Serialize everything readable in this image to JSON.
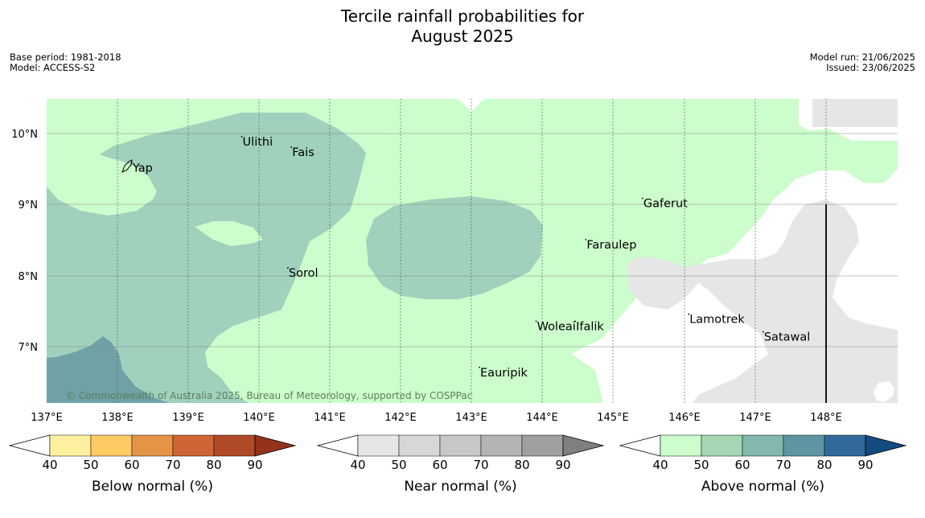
{
  "title_line1": "Tercile rainfall probabilities for",
  "title_line2": "August 2025",
  "base_period": "Base period: 1981-2018",
  "model": "Model: ACCESS-S2",
  "model_run": "Model run: 21/06/2025",
  "issued": "Issued: 23/06/2025",
  "copyright": "© Commonwealth of Australia 2025, Bureau of Meteorology, supported by COSPPac",
  "lon_labels": [
    "137°E",
    "138°E",
    "139°E",
    "140°E",
    "141°E",
    "142°E",
    "143°E",
    "144°E",
    "145°E",
    "146°E",
    "147°E",
    "148°E"
  ],
  "lat_labels": [
    "10°N",
    "9°N",
    "8°N",
    "7°N"
  ],
  "places": [
    {
      "name": "Yap",
      "lon": 138.2,
      "lat": 9.53
    },
    {
      "name": "Ulithi",
      "lon": 139.75,
      "lat": 9.9
    },
    {
      "name": "Fais",
      "lon": 140.45,
      "lat": 9.75
    },
    {
      "name": "Gaferut",
      "lon": 145.4,
      "lat": 9.03
    },
    {
      "name": "Faraulep",
      "lon": 144.6,
      "lat": 8.45
    },
    {
      "name": "Sorol",
      "lon": 140.4,
      "lat": 8.05
    },
    {
      "name": "Lamotrek",
      "lon": 146.05,
      "lat": 7.4
    },
    {
      "name": "Woleai",
      "lon": 143.9,
      "lat": 7.3
    },
    {
      "name": "Ifalik",
      "lon": 144.45,
      "lat": 7.3
    },
    {
      "name": "Satawal",
      "lon": 147.1,
      "lat": 7.15
    },
    {
      "name": "Eauripik",
      "lon": 143.1,
      "lat": 6.65
    }
  ],
  "colorbars": [
    {
      "label": "Below normal (%)",
      "ticks": [
        "40",
        "50",
        "60",
        "70",
        "80",
        "90"
      ],
      "colors": [
        "#fff0a0",
        "#fdca64",
        "#e49444",
        "#cf6534",
        "#b04a26",
        "#94321e"
      ]
    },
    {
      "label": "Near normal (%)",
      "ticks": [
        "40",
        "50",
        "60",
        "70",
        "80",
        "90"
      ],
      "colors": [
        "#e6e6e6",
        "#d7d7d7",
        "#c8c8c8",
        "#b4b4b4",
        "#a0a0a0",
        "#808080"
      ]
    },
    {
      "label": "Above normal (%)",
      "ticks": [
        "40",
        "50",
        "60",
        "70",
        "80",
        "90"
      ],
      "colors": [
        "#ccfdcc",
        "#a5d7b4",
        "#82b8ad",
        "#5f95a3",
        "#31699a",
        "#134a80"
      ]
    }
  ],
  "colors": {
    "above_40_50": "#ccfdcc",
    "above_50_60": "#9fd1bc",
    "above_60_70": "#6fa2a6",
    "near_40_50": "#e6e6e6",
    "no_signal": "#ffffff"
  }
}
